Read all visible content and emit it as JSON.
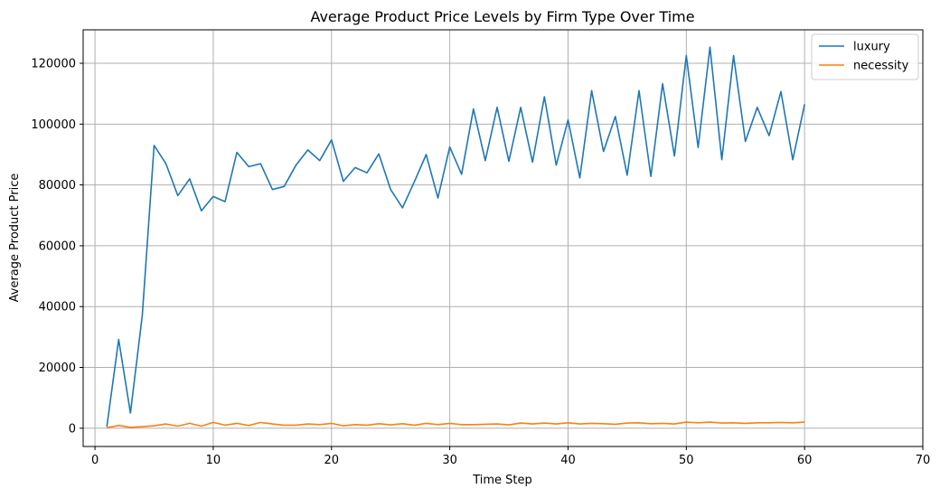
{
  "chart_data": {
    "type": "line",
    "title": "Average Product Price Levels by Firm Type Over Time",
    "xlabel": "Time Step",
    "ylabel": "Average Product Price",
    "xlim": [
      -1,
      70
    ],
    "ylim": [
      -6000,
      131000
    ],
    "xticks": [
      0,
      10,
      20,
      30,
      40,
      50,
      60,
      70
    ],
    "yticks": [
      0,
      20000,
      40000,
      60000,
      80000,
      100000,
      120000
    ],
    "grid": true,
    "legend_position": "top-right",
    "x": [
      1,
      2,
      3,
      4,
      5,
      6,
      7,
      8,
      9,
      10,
      11,
      12,
      13,
      14,
      15,
      16,
      17,
      18,
      19,
      20,
      21,
      22,
      23,
      24,
      25,
      26,
      27,
      28,
      29,
      30,
      31,
      32,
      33,
      34,
      35,
      36,
      37,
      38,
      39,
      40,
      41,
      42,
      43,
      44,
      45,
      46,
      47,
      48,
      49,
      50,
      51,
      52,
      53,
      54,
      55,
      56,
      57,
      58,
      59,
      60
    ],
    "series": [
      {
        "name": "luxury",
        "color": "#1f77b4",
        "values": [
          500,
          29200,
          5000,
          37000,
          93000,
          87000,
          76500,
          82000,
          71500,
          76200,
          74500,
          90700,
          86000,
          87000,
          78500,
          79500,
          86500,
          91500,
          88000,
          94800,
          81200,
          85700,
          84000,
          90200,
          78500,
          72500,
          81000,
          90000,
          75700,
          92500,
          83500,
          105000,
          88000,
          105500,
          87800,
          105500,
          87500,
          109000,
          86500,
          101400,
          82300,
          111000,
          91000,
          102500,
          83200,
          111000,
          82800,
          113300,
          89500,
          122500,
          92300,
          125300,
          88300,
          122500,
          94300,
          105500,
          96200,
          110700,
          88300,
          106500
        ]
      },
      {
        "name": "necessity",
        "color": "#ff7f0e",
        "values": [
          200,
          900,
          300,
          500,
          800,
          1400,
          700,
          1600,
          700,
          1900,
          1000,
          1600,
          900,
          1900,
          1400,
          1000,
          1000,
          1400,
          1200,
          1600,
          800,
          1200,
          1000,
          1500,
          1100,
          1500,
          1000,
          1600,
          1200,
          1600,
          1200,
          1200,
          1300,
          1400,
          1100,
          1700,
          1400,
          1700,
          1400,
          1800,
          1400,
          1600,
          1500,
          1300,
          1700,
          1800,
          1500,
          1600,
          1400,
          2000,
          1800,
          2000,
          1700,
          1800,
          1600,
          1800,
          1800,
          1900,
          1800,
          2000
        ]
      }
    ]
  }
}
